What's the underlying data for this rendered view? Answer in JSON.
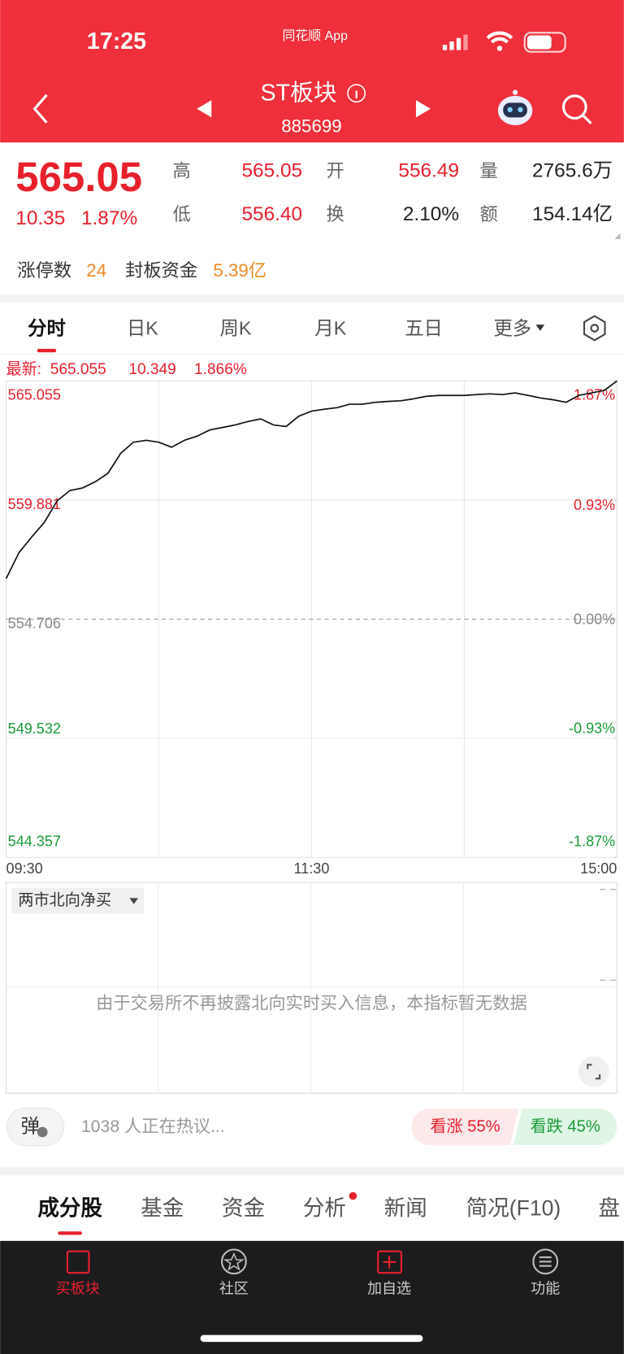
{
  "status_bar": {
    "time": "17:25",
    "app": "同花顺 App"
  },
  "header": {
    "title": "ST板块",
    "code": "885699"
  },
  "quote": {
    "price": "565.05",
    "change": "10.35",
    "change_pct": "1.87%",
    "fields": [
      {
        "label": "高",
        "value": "565.05"
      },
      {
        "label": "开",
        "value": "556.49"
      },
      {
        "label": "量",
        "value": "2765.6万"
      },
      {
        "label": "低",
        "value": "556.40"
      },
      {
        "label": "换",
        "value": "2.10%"
      },
      {
        "label": "额",
        "value": "154.14亿"
      }
    ]
  },
  "limit": {
    "count_label": "涨停数",
    "count": "24",
    "fund_label": "封板资金",
    "fund": "5.39亿"
  },
  "period_tabs": [
    "分时",
    "日K",
    "周K",
    "月K",
    "五日",
    "更多"
  ],
  "latest": {
    "label": "最新:",
    "price": "565.055",
    "change": "10.349",
    "change_pct": "1.866%"
  },
  "chart_data": {
    "type": "line",
    "categories": [
      "09:30",
      null,
      null,
      null,
      null,
      null,
      null,
      null,
      null,
      null,
      null,
      null,
      null,
      null,
      null,
      null,
      null,
      null,
      null,
      null,
      null,
      null,
      null,
      null,
      "11:30",
      null,
      null,
      null,
      null,
      null,
      null,
      null,
      null,
      null,
      null,
      null,
      null,
      null,
      null,
      null,
      null,
      null,
      null,
      null,
      null,
      null,
      null,
      null,
      "15:00"
    ],
    "series": [
      {
        "color": "#111111",
        "values": [
          556.47,
          557.59,
          558.27,
          558.91,
          559.84,
          560.29,
          560.4,
          560.67,
          561.04,
          561.91,
          562.39,
          562.47,
          562.39,
          562.17,
          562.47,
          562.65,
          562.92,
          563.03,
          563.14,
          563.29,
          563.4,
          563.14,
          563.07,
          563.52,
          563.74,
          563.82,
          563.89,
          564.04,
          564.04,
          564.12,
          564.16,
          564.19,
          564.27,
          564.38,
          564.42,
          564.42,
          564.42,
          564.46,
          564.49,
          564.46,
          564.53,
          564.42,
          564.31,
          564.23,
          564.12,
          564.42,
          564.53,
          564.64,
          565.05
        ]
      }
    ],
    "ylim": [
      544.357,
      565.055
    ],
    "yticks": [
      565.055,
      559.881,
      554.706,
      549.532,
      544.357
    ],
    "y2lim": [
      -1.87,
      1.87
    ],
    "y2ticks": [
      {
        "value": 1.87,
        "label": "1.87%"
      },
      {
        "value": 0.93,
        "label": "0.93%"
      },
      {
        "value": 0,
        "label": "0.00%"
      },
      {
        "value": -0.93,
        "label": "-0.93%"
      },
      {
        "value": -1.87,
        "label": "-1.87%"
      }
    ],
    "grid": true
  },
  "north_panel": {
    "selector": "两市北向净买",
    "message": "由于交易所不再披露北向实时买入信息，本指标暂无数据"
  },
  "discussion": {
    "button": "弹",
    "text": "1038 人正在热议...",
    "bull": "看涨 55%",
    "bear": "看跌 45%"
  },
  "section_tabs": [
    "成分股",
    "基金",
    "资金",
    "分析",
    "新闻",
    "简况(F10)",
    "盘"
  ],
  "bottom_nav": [
    "买板块",
    "社区",
    "加自选",
    "功能"
  ]
}
